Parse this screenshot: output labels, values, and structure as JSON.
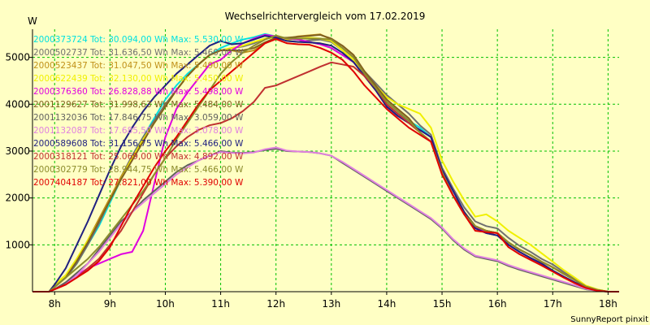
{
  "chart_data": {
    "type": "line",
    "title": "Wechselrichtervergleich vom 17.02.2019",
    "ylabel": "W",
    "xlabel": "",
    "footer": "SunnyReport pinxit",
    "xlim": [
      7.6,
      18.2
    ],
    "ylim": [
      0,
      5600
    ],
    "x_ticks": [
      8,
      9,
      10,
      11,
      12,
      13,
      14,
      15,
      16,
      17,
      18
    ],
    "x_tick_labels": [
      "8h",
      "9h",
      "10h",
      "11h",
      "12h",
      "13h",
      "14h",
      "15h",
      "16h",
      "17h",
      "18h"
    ],
    "y_ticks": [
      1000,
      2000,
      3000,
      4000,
      5000
    ],
    "y_tick_labels": [
      "1000",
      "2000",
      "3000",
      "4000",
      "5000"
    ],
    "grid": true,
    "legend_position": "top-left",
    "x": [
      7.6,
      7.9,
      8.0,
      8.2,
      8.4,
      8.6,
      8.8,
      9.0,
      9.2,
      9.4,
      9.6,
      9.8,
      10.0,
      10.2,
      10.4,
      10.6,
      10.8,
      11.0,
      11.2,
      11.4,
      11.6,
      11.8,
      12.0,
      12.2,
      12.4,
      12.6,
      12.8,
      13.0,
      13.2,
      13.4,
      13.6,
      13.8,
      14.0,
      14.2,
      14.4,
      14.6,
      14.8,
      15.0,
      15.2,
      15.4,
      15.6,
      15.8,
      16.0,
      16.2,
      16.4,
      16.6,
      16.8,
      17.0,
      17.2,
      17.4,
      17.6,
      17.8,
      18.0,
      18.2
    ],
    "series": [
      {
        "name": "2000373724",
        "legend": "2000373724 Tot: 30.094,00 Wh Max: 5.530,00 W",
        "color": "#00e0e0",
        "values": [
          0,
          0,
          100,
          300,
          600,
          1000,
          1400,
          1900,
          2400,
          2900,
          3300,
          3700,
          4100,
          4400,
          4650,
          4850,
          5050,
          5200,
          5300,
          5380,
          5430,
          5500,
          5450,
          5400,
          5380,
          5330,
          5280,
          5200,
          5050,
          4900,
          4650,
          4350,
          4000,
          3800,
          3650,
          3500,
          3300,
          2600,
          2150,
          1700,
          1400,
          1250,
          1200,
          1000,
          850,
          720,
          600,
          450,
          320,
          200,
          90,
          30,
          0,
          0
        ]
      },
      {
        "name": "2000502737",
        "legend": "2000502737 Tot: 31.636,50 Wh Max: 5.460,00 W",
        "color": "#707070",
        "values": [
          0,
          0,
          100,
          300,
          600,
          1000,
          1450,
          1950,
          2450,
          2900,
          3300,
          3650,
          4000,
          4300,
          4600,
          4850,
          5050,
          5150,
          5200,
          5230,
          5300,
          5400,
          5430,
          5350,
          5330,
          5360,
          5380,
          5330,
          5150,
          4950,
          4700,
          4450,
          4200,
          4000,
          3800,
          3550,
          3350,
          2650,
          2200,
          1800,
          1500,
          1400,
          1350,
          1150,
          980,
          850,
          700,
          580,
          420,
          280,
          120,
          40,
          0,
          0
        ]
      },
      {
        "name": "2000523437",
        "legend": "2000523437 Tot: 31.047,50 Wh Max: 5.490,00 W",
        "color": "#c09018",
        "values": [
          0,
          0,
          150,
          350,
          700,
          1100,
          1550,
          2000,
          2450,
          2850,
          3250,
          3600,
          3950,
          4300,
          4600,
          4850,
          5050,
          5150,
          5150,
          5100,
          5150,
          5300,
          5400,
          5400,
          5450,
          5470,
          5490,
          5380,
          5250,
          5050,
          4700,
          4400,
          4100,
          3900,
          3700,
          3400,
          3200,
          2550,
          2050,
          1650,
          1400,
          1300,
          1250,
          1050,
          900,
          780,
          640,
          520,
          380,
          250,
          110,
          40,
          0,
          0
        ]
      },
      {
        "name": "2000622439",
        "legend": "2000622439 Tot: 32.130,00 Wh Max: 5.450,00 W",
        "color": "#f0f000",
        "values": [
          0,
          0,
          150,
          350,
          700,
          1100,
          1500,
          1950,
          2400,
          2850,
          3250,
          3600,
          3950,
          4300,
          4600,
          4850,
          5050,
          5150,
          5200,
          5250,
          5330,
          5400,
          5430,
          5380,
          5400,
          5420,
          5400,
          5350,
          5150,
          4950,
          4650,
          4400,
          4150,
          4000,
          3900,
          3800,
          3500,
          2800,
          2350,
          1950,
          1600,
          1650,
          1500,
          1300,
          1150,
          1000,
          820,
          640,
          460,
          300,
          130,
          50,
          0,
          0
        ]
      },
      {
        "name": "2000376360",
        "legend": "2000376360 Tot: 26.828,88 Wh Max: 5.498,00 W",
        "color": "#e000e0",
        "values": [
          0,
          0,
          50,
          200,
          350,
          500,
          600,
          700,
          800,
          850,
          1300,
          2300,
          3300,
          3900,
          4250,
          4550,
          4850,
          4950,
          5150,
          5300,
          5400,
          5480,
          5450,
          5400,
          5380,
          5330,
          5280,
          5200,
          5050,
          4900,
          4600,
          4300,
          3950,
          3750,
          3600,
          3450,
          3300,
          2600,
          2150,
          1700,
          1380,
          1250,
          1200,
          1000,
          850,
          720,
          600,
          450,
          320,
          200,
          90,
          30,
          0,
          0
        ]
      },
      {
        "name": "2001129627",
        "legend": "2001129627 Tot: 31.998,63 Wh Max: 5.484,00 W",
        "color": "#806020",
        "values": [
          0,
          0,
          100,
          300,
          650,
          1050,
          1500,
          1950,
          2400,
          2800,
          3200,
          3600,
          3950,
          4300,
          4600,
          4850,
          5050,
          5150,
          5150,
          5150,
          5200,
          5320,
          5420,
          5420,
          5440,
          5460,
          5480,
          5400,
          5250,
          5050,
          4700,
          4400,
          4100,
          3900,
          3700,
          3400,
          3200,
          2550,
          2050,
          1700,
          1400,
          1300,
          1250,
          1050,
          900,
          780,
          640,
          520,
          380,
          250,
          110,
          40,
          0,
          0
        ]
      },
      {
        "name": "2001132036",
        "legend": "2001132036 Tot: 17.846,75 Wh Max: 3.059,00 W",
        "color": "#606060",
        "values": [
          0,
          0,
          50,
          200,
          400,
          600,
          900,
          1200,
          1500,
          1700,
          1950,
          2150,
          2350,
          2550,
          2700,
          2800,
          2900,
          3000,
          2970,
          2960,
          2980,
          3020,
          3050,
          3000,
          2990,
          2980,
          2950,
          2900,
          2750,
          2600,
          2450,
          2300,
          2150,
          2000,
          1850,
          1700,
          1550,
          1350,
          1100,
          900,
          750,
          700,
          650,
          550,
          470,
          400,
          330,
          260,
          190,
          120,
          50,
          20,
          0,
          0
        ]
      },
      {
        "name": "2001132087",
        "legend": "2001132087 Tot: 17.685,50 Wh Max: 3.078,00 W",
        "color": "#e080e0",
        "values": [
          0,
          0,
          50,
          150,
          350,
          600,
          850,
          1150,
          1450,
          1700,
          1900,
          2100,
          2300,
          2500,
          2650,
          2800,
          2900,
          2980,
          2960,
          2950,
          2970,
          3040,
          3078,
          3010,
          2990,
          2980,
          2950,
          2900,
          2770,
          2620,
          2470,
          2320,
          2170,
          2020,
          1870,
          1720,
          1570,
          1370,
          1120,
          920,
          770,
          720,
          670,
          570,
          490,
          420,
          350,
          280,
          210,
          140,
          60,
          20,
          0,
          0
        ]
      },
      {
        "name": "2000589608",
        "legend": "2000589608 Tot: 31.156,75 Wh Max: 5.466,00 W",
        "color": "#202080",
        "values": [
          0,
          0,
          150,
          500,
          1000,
          1500,
          2050,
          2600,
          3100,
          3500,
          3850,
          4150,
          4400,
          4650,
          4850,
          5050,
          5250,
          5350,
          5280,
          5300,
          5380,
          5460,
          5420,
          5350,
          5330,
          5320,
          5300,
          5250,
          5100,
          4900,
          4600,
          4300,
          3950,
          3750,
          3600,
          3450,
          3300,
          2600,
          2150,
          1700,
          1350,
          1250,
          1200,
          1000,
          850,
          720,
          600,
          450,
          320,
          200,
          90,
          30,
          0,
          0
        ]
      },
      {
        "name": "2000318121",
        "legend": "2000318121 Tot: 25.069,00 Wh Max: 4.892,00 W",
        "color": "#c03030",
        "values": [
          0,
          0,
          50,
          150,
          300,
          500,
          700,
          1000,
          1300,
          1700,
          2100,
          2500,
          2850,
          3100,
          3300,
          3450,
          3550,
          3600,
          3700,
          3850,
          4050,
          4350,
          4400,
          4500,
          4600,
          4700,
          4800,
          4892,
          4850,
          4800,
          4600,
          4350,
          4000,
          3800,
          3600,
          3400,
          3200,
          2550,
          2050,
          1650,
          1400,
          1300,
          1250,
          1050,
          900,
          780,
          640,
          520,
          380,
          250,
          110,
          40,
          0,
          0
        ]
      },
      {
        "name": "2000302779",
        "legend": "2000302779 Tot: 28.944,75 Wh Max: 5.466,00 W",
        "color": "#8c8c2c",
        "values": [
          0,
          0,
          100,
          300,
          500,
          700,
          950,
          1250,
          1550,
          1850,
          2150,
          2500,
          2850,
          3250,
          3600,
          3950,
          4300,
          4650,
          4900,
          5100,
          5250,
          5380,
          5466,
          5400,
          5400,
          5400,
          5400,
          5380,
          5200,
          5000,
          4650,
          4350,
          4050,
          3850,
          3650,
          3400,
          3200,
          2550,
          2050,
          1650,
          1400,
          1300,
          1250,
          1050,
          900,
          780,
          640,
          520,
          380,
          250,
          110,
          40,
          0,
          0
        ]
      },
      {
        "name": "2007404187",
        "legend": "2007404187 Tot: 27.821,00 Wh Max: 5.390,00 W",
        "color": "#e00000",
        "values": [
          0,
          0,
          50,
          150,
          300,
          450,
          650,
          950,
          1400,
          1850,
          2250,
          2650,
          3000,
          3300,
          3650,
          4000,
          4300,
          4500,
          4700,
          4900,
          5100,
          5300,
          5390,
          5300,
          5280,
          5270,
          5200,
          5100,
          4950,
          4700,
          4400,
          4150,
          3900,
          3700,
          3500,
          3350,
          3200,
          2500,
          2050,
          1650,
          1300,
          1270,
          1250,
          950,
          800,
          680,
          560,
          430,
          300,
          180,
          80,
          20,
          0,
          0
        ]
      }
    ]
  }
}
